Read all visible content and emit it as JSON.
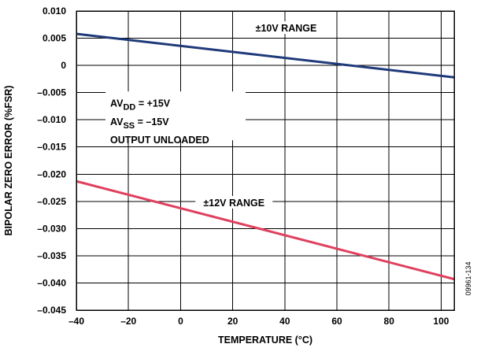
{
  "chart_data": {
    "type": "line",
    "title": "",
    "xlabel": "TEMPERATURE (°C)",
    "ylabel": "BIPOLAR ZERO ERROR (%FSR)",
    "xlim": [
      -40,
      105
    ],
    "ylim": [
      -0.045,
      0.01
    ],
    "x_ticks": [
      -40,
      -20,
      0,
      20,
      40,
      60,
      80,
      100
    ],
    "y_ticks": [
      0.01,
      0.005,
      0,
      -0.005,
      -0.01,
      -0.015,
      -0.02,
      -0.025,
      -0.03,
      -0.035,
      -0.04,
      -0.045
    ],
    "x_tick_labels": [
      "–40",
      "–20",
      "0",
      "20",
      "40",
      "60",
      "80",
      "100"
    ],
    "y_tick_labels": [
      "0.010",
      "0.005",
      "0",
      "–0.005",
      "–0.010",
      "–0.015",
      "–0.020",
      "–0.025",
      "–0.030",
      "–0.035",
      "–0.040",
      "–0.045"
    ],
    "grid": true,
    "series": [
      {
        "name": "±10V RANGE",
        "color": "#1f3a7a",
        "x": [
          -40,
          105
        ],
        "y": [
          0.0058,
          -0.0022
        ]
      },
      {
        "name": "±12V RANGE",
        "color": "#e0405e",
        "x": [
          -40,
          105
        ],
        "y": [
          -0.0213,
          -0.0393
        ]
      }
    ],
    "annotations": {
      "conditions": [
        {
          "main": "AV",
          "sub": "DD",
          "rest": " = +15V"
        },
        {
          "main": "AV",
          "sub": "SS",
          "rest": " = –15V"
        },
        {
          "main": "OUTPUT UNLOADED",
          "sub": "",
          "rest": ""
        }
      ]
    },
    "figure_id": "09961-134"
  }
}
